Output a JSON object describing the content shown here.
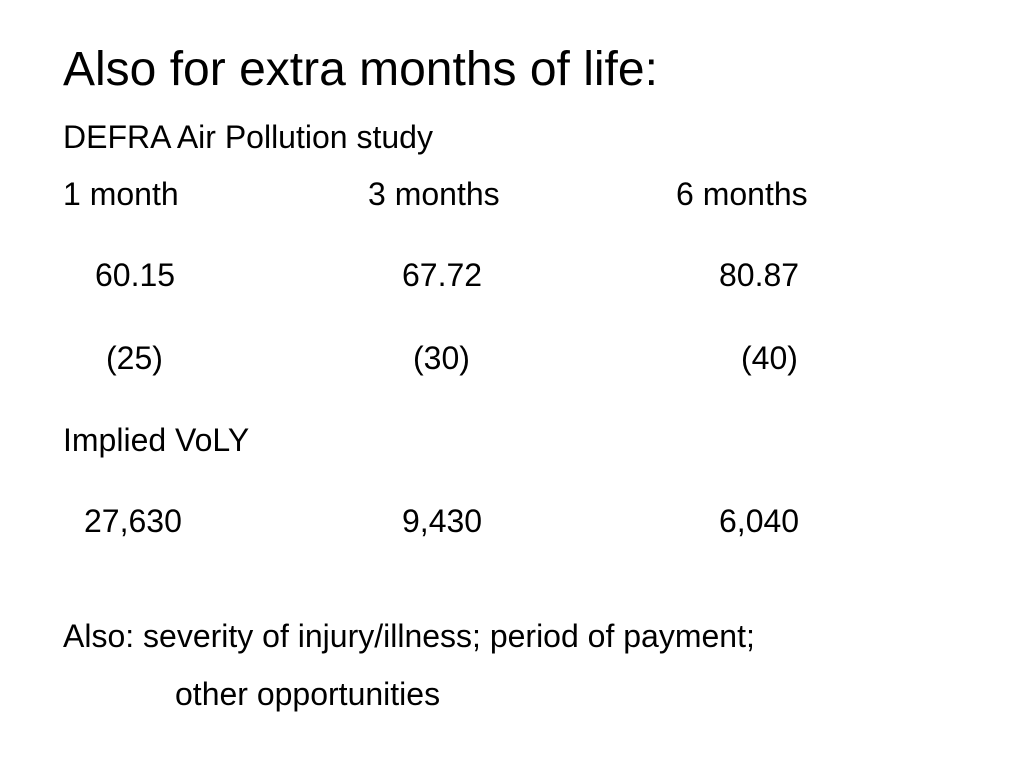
{
  "slide": {
    "title": "Also for extra months of life:",
    "subtitle": "DEFRA Air Pollution study",
    "columns": [
      "1 month",
      "3 months",
      "6 months"
    ],
    "values": [
      "60.15",
      "67.72",
      "80.87"
    ],
    "counts": [
      "(25)",
      "(30)",
      "(40)"
    ],
    "voly_label": "Implied VoLY",
    "voly_values": [
      "27,630",
      "9,430",
      "6,040"
    ],
    "note_line1": "Also: severity of injury/illness; period of payment;",
    "note_line2": "other opportunities"
  }
}
